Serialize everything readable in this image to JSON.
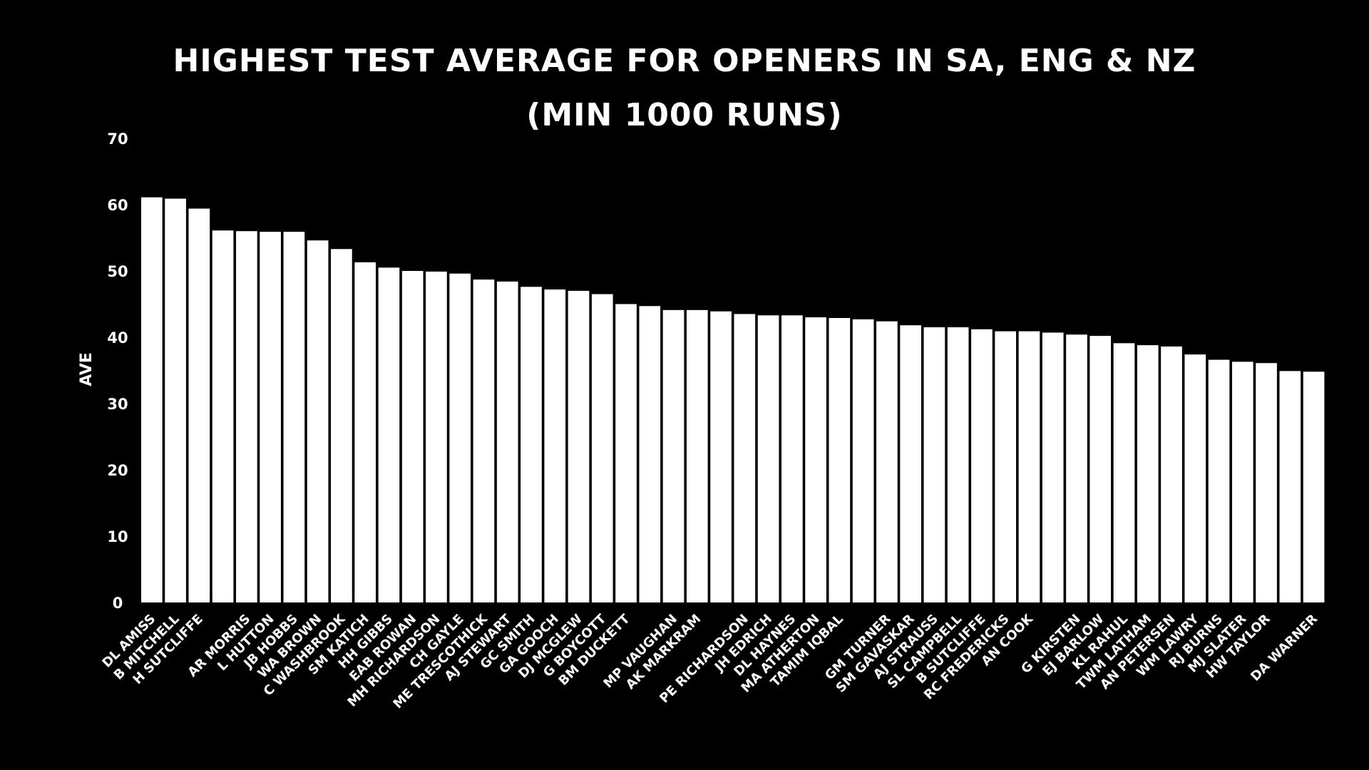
{
  "chart_data": {
    "type": "bar",
    "title": "HIGHEST TEST AVERAGE FOR OPENERS IN SA, ENG & NZ",
    "subtitle": "(MIN 1000 RUNS)",
    "xlabel": "",
    "ylabel": "AVE",
    "ylim": [
      0,
      70
    ],
    "yticks": [
      0,
      10,
      20,
      30,
      40,
      50,
      60,
      70
    ],
    "grid": false,
    "bar_color": "#ffffff",
    "background": "#000000",
    "categories": [
      "DL AMISS",
      "B MITCHELL",
      "H SUTCLIFFE",
      "",
      "AR MORRIS",
      "L HUTTON",
      "JB HOBBS",
      "WA BROWN",
      "C WASHBROOK",
      "SM KATICH",
      "HH GIBBS",
      "EAB ROWAN",
      "MH RICHARDSON",
      "CH GAYLE",
      "ME TRESCOTHICK",
      "AJ STEWART",
      "GC SMITH",
      "GA GOOCH",
      "DJ MCGLEW",
      "G BOYCOTT",
      "BM DUCKETT",
      "",
      "MP VAUGHAN",
      "AK MARKRAM",
      "",
      "PE RICHARDSON",
      "JH EDRICH",
      "DL HAYNES",
      "MA ATHERTON",
      "TAMIM IQBAL",
      "",
      "GM TURNER",
      "SM GAVASKAR",
      "AJ STRAUSS",
      "SL CAMPBELL",
      "B SUTCLIFFE",
      "RC FREDERICKS",
      "AN COOK",
      "",
      "G KIRSTEN",
      "EJ BARLOW",
      "KL RAHUL",
      "TWM LATHAM",
      "AN PETERSEN",
      "WM LAWRY",
      "RJ BURNS",
      "MJ SLATER",
      "HW TAYLOR",
      "",
      "DA WARNER"
    ],
    "values": [
      61.1,
      60.9,
      59.4,
      56.1,
      56.0,
      55.9,
      55.9,
      54.6,
      53.3,
      51.3,
      50.5,
      50.0,
      49.9,
      49.6,
      48.7,
      48.4,
      47.6,
      47.2,
      47.0,
      46.5,
      45.0,
      44.7,
      44.1,
      44.1,
      43.9,
      43.5,
      43.3,
      43.3,
      43.0,
      42.9,
      42.7,
      42.4,
      41.8,
      41.5,
      41.5,
      41.2,
      40.9,
      40.9,
      40.7,
      40.4,
      40.2,
      39.1,
      38.8,
      38.6,
      37.4,
      36.6,
      36.3,
      36.1,
      34.9,
      34.8
    ]
  }
}
